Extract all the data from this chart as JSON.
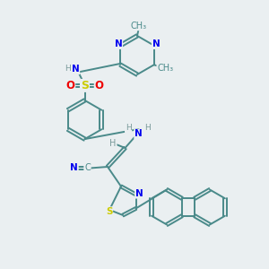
{
  "background_color": "#eaeff1",
  "bond_color": "#4a8a8a",
  "bond_width": 1.4,
  "atom_colors": {
    "C": "#4a8a8a",
    "N": "#0000ee",
    "S": "#cccc00",
    "O": "#ee0000",
    "H": "#7a9a9a"
  },
  "figsize": [
    3.0,
    3.0
  ],
  "dpi": 100,
  "xlim": [
    0,
    10
  ],
  "ylim": [
    0,
    10
  ]
}
